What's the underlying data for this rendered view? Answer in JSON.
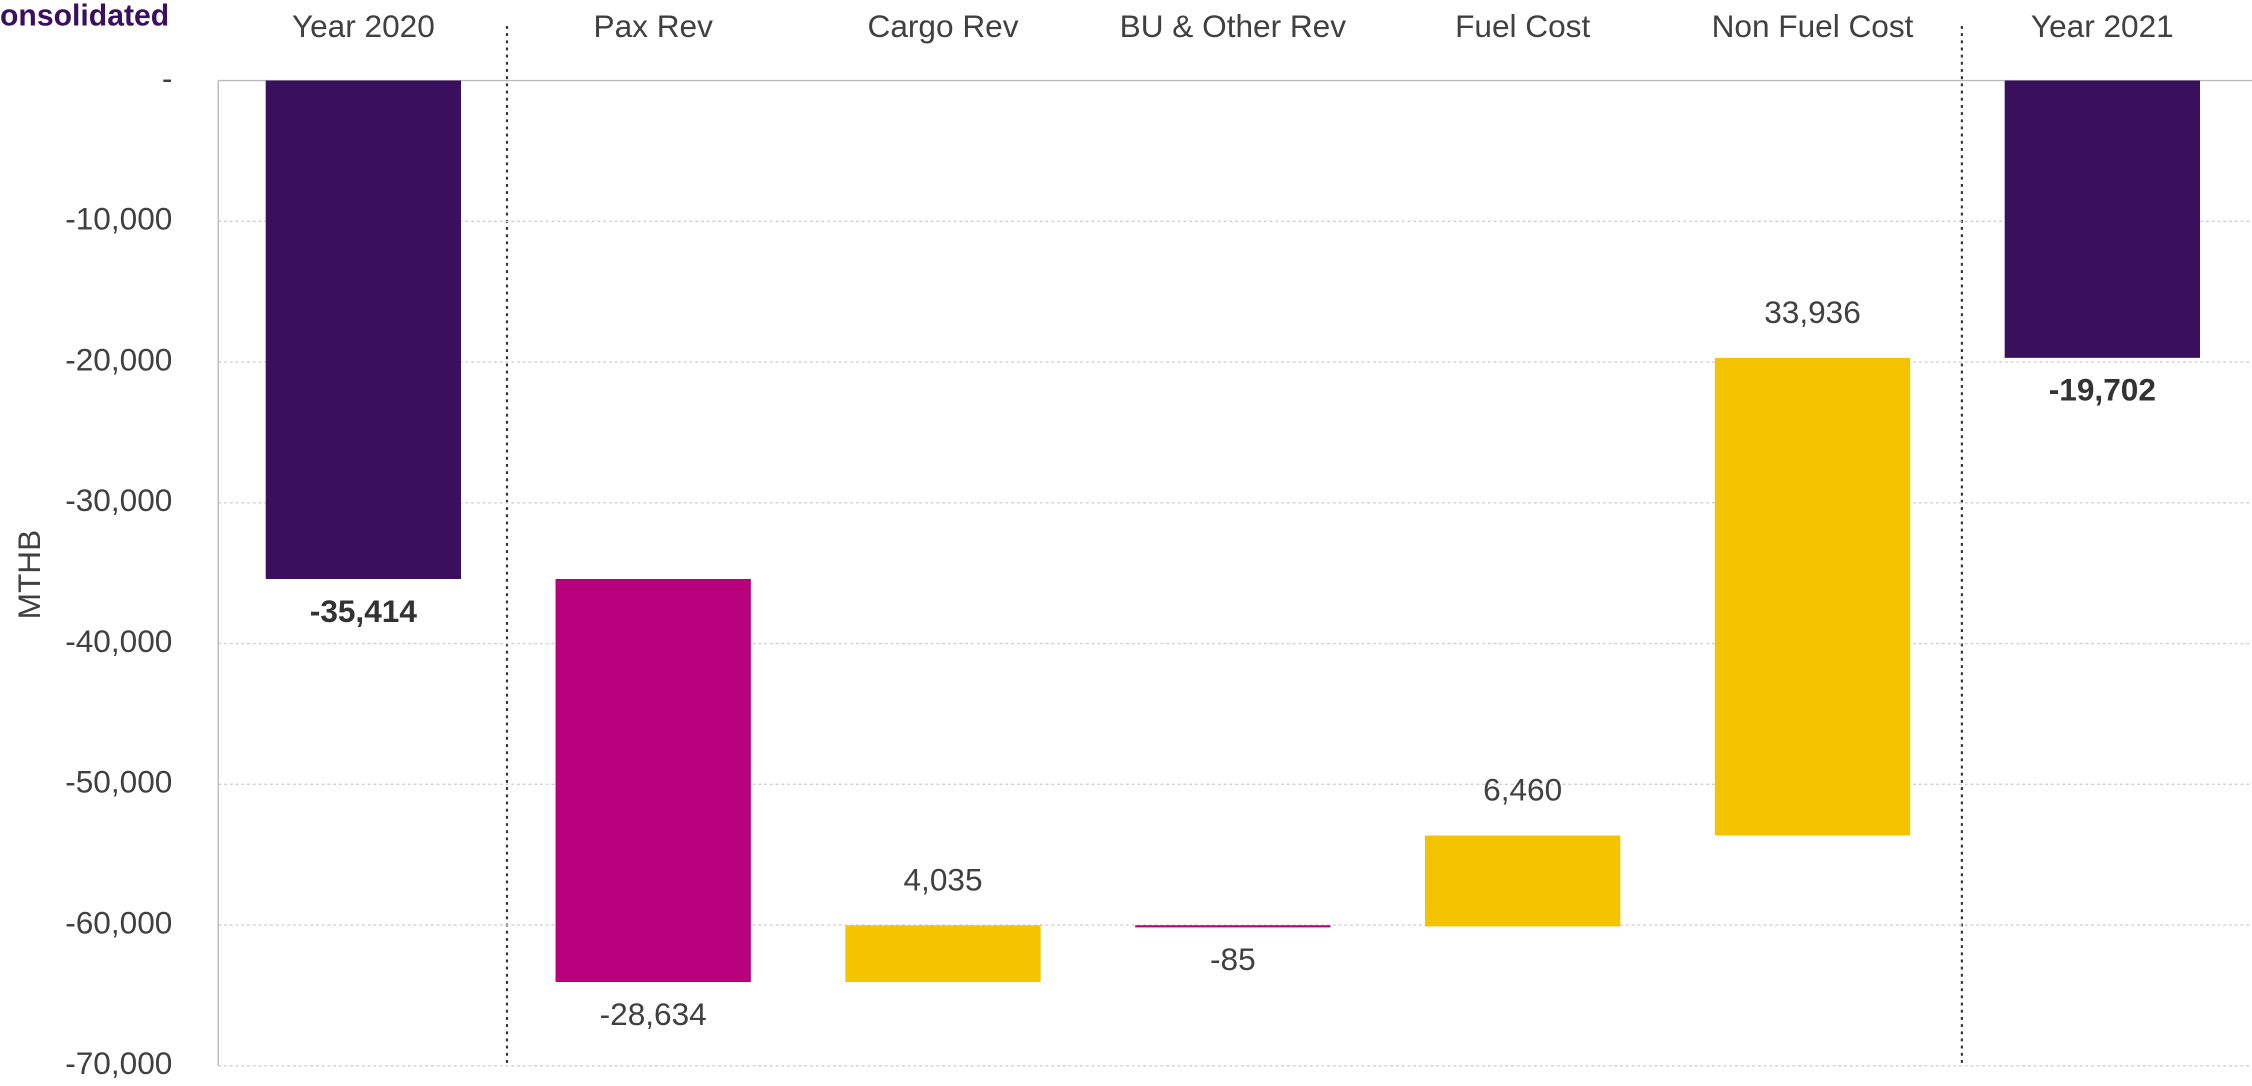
{
  "chart_data": {
    "type": "waterfall",
    "title": "onsolidated",
    "ylabel": "MTHB",
    "categories": [
      "Year 2020",
      "Pax Rev",
      "Cargo Rev",
      "BU & Other Rev",
      "Fuel Cost",
      "Non Fuel Cost",
      "Year 2021"
    ],
    "values": [
      -35414,
      -28634,
      4035,
      -85,
      6460,
      33936,
      -19702
    ],
    "value_labels": [
      "-35,414",
      "-28,634",
      "4,035",
      "-85",
      "6,460",
      "33,936",
      "-19,702"
    ],
    "measure": [
      "total",
      "relative",
      "relative",
      "relative",
      "relative",
      "relative",
      "total"
    ],
    "colors": [
      "#3a0f5d",
      "#b8007c",
      "#f5c400",
      "#b8007c",
      "#f5c400",
      "#f5c400",
      "#3a0f5d"
    ],
    "ylim": [
      -70000,
      0
    ],
    "yticks": [
      {
        "value": 0,
        "label": "-"
      },
      {
        "value": -10000,
        "label": "-10,000"
      },
      {
        "value": -20000,
        "label": "-20,000"
      },
      {
        "value": -30000,
        "label": "-30,000"
      },
      {
        "value": -40000,
        "label": "-40,000"
      },
      {
        "value": -50000,
        "label": "-50,000"
      },
      {
        "value": -60000,
        "label": "-60,000"
      },
      {
        "value": -70000,
        "label": "-70,000"
      }
    ],
    "grid": true
  }
}
